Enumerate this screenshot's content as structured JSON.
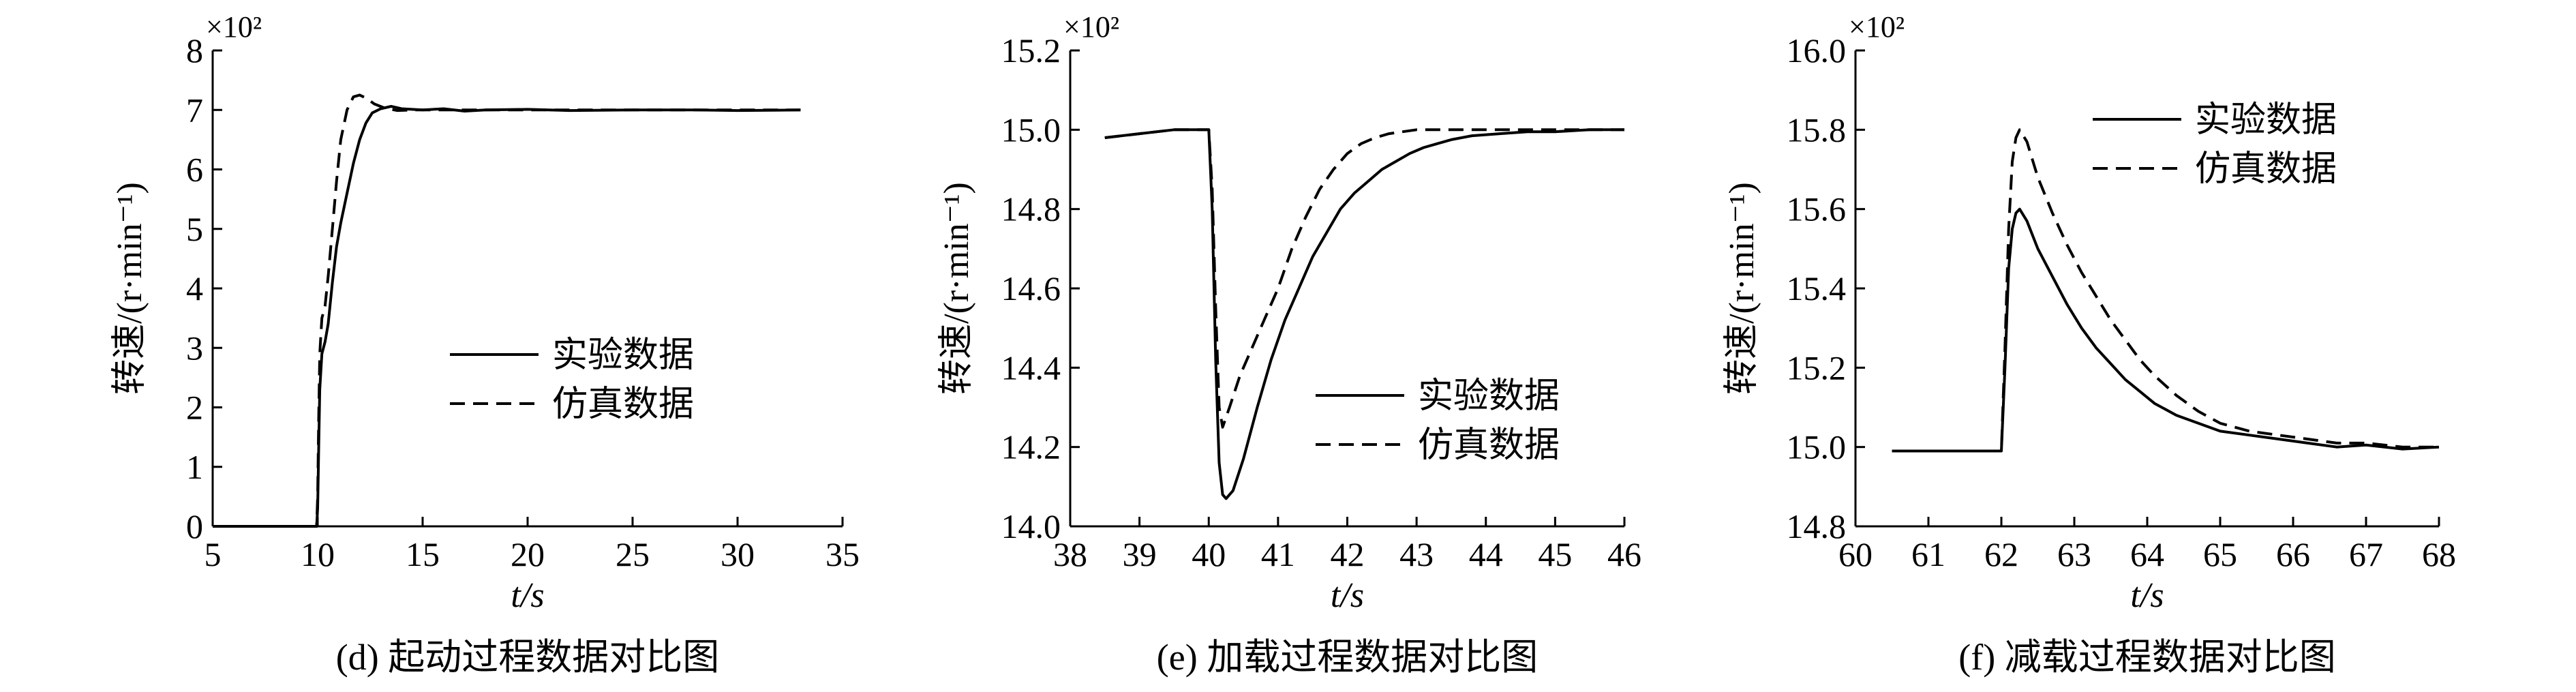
{
  "chart_data": [
    {
      "type": "line",
      "exponent_label": "×10²",
      "xlabel": "t/s",
      "ylabel": "转速/(r·min⁻¹)",
      "caption": "(d) 起动过程数据对比图",
      "xlim": [
        5,
        35
      ],
      "ylim": [
        0,
        8
      ],
      "xticks": [
        5,
        10,
        15,
        20,
        25,
        30,
        35
      ],
      "yticks": [
        0,
        1,
        2,
        3,
        4,
        5,
        6,
        7,
        8
      ],
      "legend_position": "center-right",
      "series": [
        {
          "name": "实验数据",
          "style": "solid",
          "color": "#000000",
          "x": [
            5,
            9.95,
            10.0,
            10.05,
            10.1,
            10.2,
            10.35,
            10.5,
            10.7,
            10.9,
            11.1,
            11.4,
            11.7,
            12.0,
            12.3,
            12.6,
            13.0,
            13.5,
            14,
            15,
            16,
            17,
            18,
            20,
            22,
            25,
            28,
            30,
            33
          ],
          "y": [
            0,
            0,
            0.3,
            1.3,
            2.3,
            2.9,
            3.1,
            3.4,
            4.1,
            4.7,
            5.1,
            5.6,
            6.1,
            6.5,
            6.78,
            6.95,
            7.02,
            7.06,
            7.02,
            7.0,
            7.02,
            6.98,
            7.0,
            7.01,
            6.99,
            7.0,
            7.0,
            6.99,
            7.0
          ]
        },
        {
          "name": "仿真数据",
          "style": "dashed",
          "color": "#000000",
          "x": [
            5,
            9.95,
            10.0,
            10.05,
            10.1,
            10.2,
            10.35,
            10.5,
            10.7,
            10.9,
            11.1,
            11.4,
            11.7,
            12.0,
            12.3,
            12.7,
            13.2,
            13.8,
            14.5,
            15.5,
            17,
            20,
            25,
            33
          ],
          "y": [
            0,
            0,
            0.5,
            1.8,
            2.9,
            3.5,
            3.7,
            4.2,
            5.0,
            5.8,
            6.5,
            7.0,
            7.22,
            7.25,
            7.2,
            7.1,
            7.03,
            6.99,
            7.0,
            7.0,
            7.0,
            7.0,
            7.0,
            7.0
          ]
        }
      ]
    },
    {
      "type": "line",
      "exponent_label": "×10²",
      "xlabel": "t/s",
      "ylabel": "转速/(r·min⁻¹)",
      "caption": "(e) 加载过程数据对比图",
      "xlim": [
        38,
        46
      ],
      "ylim": [
        14.0,
        15.2
      ],
      "xticks": [
        38,
        39,
        40,
        41,
        42,
        43,
        44,
        45,
        46
      ],
      "yticks": [
        14.0,
        14.2,
        14.4,
        14.6,
        14.8,
        15.0,
        15.2
      ],
      "yticklabels": [
        "14.0",
        "14.2",
        "14.4",
        "14.6",
        "14.8",
        "15.0",
        "15.2"
      ],
      "legend_position": "lower-right",
      "series": [
        {
          "name": "实验数据",
          "style": "solid",
          "color": "#000000",
          "x": [
            38.5,
            39.0,
            39.5,
            40.0,
            40.05,
            40.1,
            40.15,
            40.2,
            40.25,
            40.35,
            40.5,
            40.7,
            40.9,
            41.1,
            41.3,
            41.5,
            41.7,
            41.9,
            42.1,
            42.3,
            42.5,
            42.7,
            42.9,
            43.1,
            43.3,
            43.5,
            43.8,
            44.2,
            44.6,
            45.0,
            45.5,
            46.0
          ],
          "y": [
            14.98,
            14.99,
            15.0,
            15.0,
            14.8,
            14.42,
            14.16,
            14.08,
            14.07,
            14.09,
            14.17,
            14.3,
            14.42,
            14.52,
            14.6,
            14.68,
            14.74,
            14.8,
            14.84,
            14.87,
            14.9,
            14.92,
            14.94,
            14.955,
            14.965,
            14.975,
            14.985,
            14.99,
            14.995,
            14.995,
            15.0,
            15.0
          ]
        },
        {
          "name": "仿真数据",
          "style": "dashed",
          "color": "#000000",
          "x": [
            38.5,
            39.0,
            39.5,
            40.0,
            40.05,
            40.1,
            40.15,
            40.2,
            40.3,
            40.45,
            40.6,
            40.8,
            41.0,
            41.2,
            41.4,
            41.6,
            41.8,
            42.0,
            42.2,
            42.4,
            42.6,
            42.8,
            43.0,
            43.3,
            43.6,
            44,
            44.5,
            45,
            46.0
          ],
          "y": [
            14.98,
            14.99,
            15.0,
            15.0,
            14.85,
            14.55,
            14.3,
            14.25,
            14.3,
            14.38,
            14.44,
            14.52,
            14.6,
            14.7,
            14.78,
            14.85,
            14.9,
            14.94,
            14.965,
            14.98,
            14.99,
            14.995,
            15.0,
            15.0,
            15.0,
            15.0,
            15.0,
            15.0,
            15.0
          ]
        }
      ]
    },
    {
      "type": "line",
      "exponent_label": "×10²",
      "xlabel": "t/s",
      "ylabel": "转速/(r·min⁻¹)",
      "caption": "(f) 减载过程数据对比图",
      "xlim": [
        60,
        68
      ],
      "ylim": [
        14.8,
        16.0
      ],
      "xticks": [
        60,
        61,
        62,
        63,
        64,
        65,
        66,
        67,
        68
      ],
      "yticks": [
        14.8,
        15.0,
        15.2,
        15.4,
        15.6,
        15.8,
        16.0
      ],
      "yticklabels": [
        "14.8",
        "15.0",
        "15.2",
        "15.4",
        "15.6",
        "15.8",
        "16.0"
      ],
      "legend_position": "top-right",
      "series": [
        {
          "name": "实验数据",
          "style": "solid",
          "color": "#000000",
          "x": [
            60.5,
            61.0,
            61.5,
            62.0,
            62.05,
            62.1,
            62.15,
            62.2,
            62.25,
            62.35,
            62.5,
            62.7,
            62.9,
            63.1,
            63.3,
            63.5,
            63.7,
            63.9,
            64.1,
            64.4,
            64.7,
            65.0,
            65.4,
            65.8,
            66.2,
            66.6,
            67.0,
            67.5,
            68.0
          ],
          "y": [
            14.99,
            14.99,
            14.99,
            14.99,
            15.2,
            15.45,
            15.55,
            15.59,
            15.6,
            15.57,
            15.5,
            15.43,
            15.36,
            15.3,
            15.25,
            15.21,
            15.17,
            15.14,
            15.11,
            15.08,
            15.06,
            15.04,
            15.03,
            15.02,
            15.01,
            15.0,
            15.005,
            14.995,
            15.0
          ]
        },
        {
          "name": "仿真数据",
          "style": "dashed",
          "color": "#000000",
          "x": [
            60.5,
            61.0,
            61.5,
            62.0,
            62.05,
            62.1,
            62.15,
            62.2,
            62.25,
            62.35,
            62.5,
            62.7,
            62.9,
            63.1,
            63.3,
            63.5,
            63.7,
            63.9,
            64.1,
            64.4,
            64.7,
            65.0,
            65.4,
            65.8,
            66.2,
            66.6,
            67.0,
            67.5,
            68.0
          ],
          "y": [
            14.99,
            14.99,
            14.99,
            14.99,
            15.25,
            15.55,
            15.72,
            15.78,
            15.8,
            15.77,
            15.68,
            15.59,
            15.51,
            15.44,
            15.38,
            15.32,
            15.27,
            15.22,
            15.18,
            15.13,
            15.09,
            15.06,
            15.04,
            15.03,
            15.02,
            15.01,
            15.01,
            15.0,
            15.0
          ]
        }
      ]
    }
  ]
}
